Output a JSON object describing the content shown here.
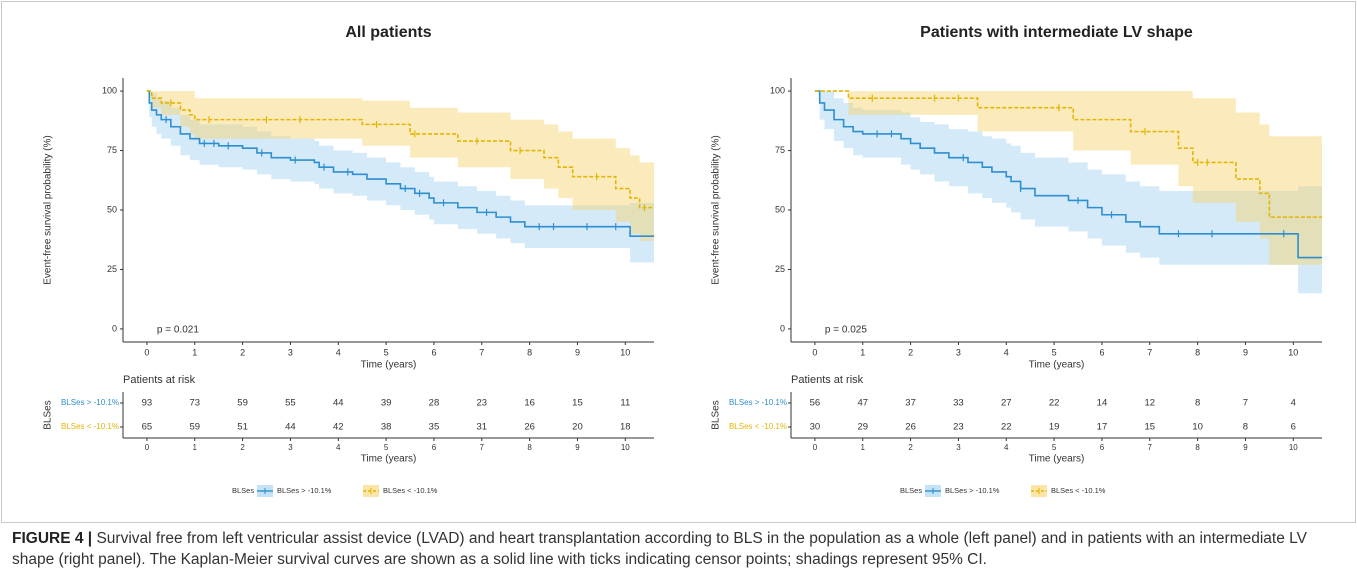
{
  "chart_data": [
    {
      "type": "step",
      "title": "All patients",
      "xlabel": "Time (years)",
      "ylabel": "Event-free survival probability (%)",
      "xlim": [
        -0.5,
        10.6
      ],
      "xticks": [
        0,
        1,
        2,
        3,
        4,
        5,
        6,
        7,
        8,
        9,
        10
      ],
      "ylim": [
        -5.5,
        105.5
      ],
      "yticks": [
        0,
        25,
        50,
        75,
        100
      ],
      "annotation": "p = 0.021",
      "risk_table_title": "Patients at risk",
      "legend_title": "BLSes",
      "series": [
        {
          "name": "BLSes > -10.1%",
          "color": "#2e8fd0",
          "band_color": "#9fd0f0",
          "dash": false,
          "x": [
            0,
            0.05,
            0.1,
            0.2,
            0.3,
            0.5,
            0.7,
            0.9,
            1.1,
            1.5,
            2,
            2.3,
            2.6,
            3,
            3.5,
            3.6,
            3.9,
            4.3,
            4.6,
            5,
            5.3,
            5.6,
            5.9,
            6,
            6.5,
            6.9,
            7.3,
            7.6,
            7.9,
            10.1
          ],
          "values": [
            100,
            95,
            92,
            90,
            88,
            85,
            82,
            80,
            78,
            77,
            76,
            74,
            72,
            71,
            70,
            68,
            66,
            65,
            63,
            61,
            59,
            57,
            55,
            53,
            51,
            49,
            47,
            45,
            43,
            39
          ],
          "lower": [
            100,
            89,
            85,
            82,
            80,
            77,
            73,
            71,
            69,
            68,
            67,
            65,
            63,
            62,
            61,
            59,
            57,
            56,
            54,
            52,
            50,
            48,
            46,
            44,
            42,
            40,
            38,
            36,
            34,
            28
          ],
          "upper": [
            100,
            100,
            99,
            97,
            96,
            93,
            90,
            88,
            86,
            86,
            85,
            83,
            81,
            80,
            79,
            77,
            75,
            74,
            72,
            70,
            68,
            66,
            64,
            62,
            60,
            58,
            56,
            54,
            52,
            53
          ],
          "censor": [
            0.4,
            1.2,
            1.4,
            1.7,
            2.4,
            3.1,
            3.7,
            4.2,
            5.4,
            5.7,
            6.2,
            7.1,
            8.2,
            8.5,
            9.2,
            9.8
          ],
          "at_risk": [
            93,
            73,
            59,
            55,
            44,
            39,
            28,
            23,
            16,
            15,
            11
          ]
        },
        {
          "name": "BLSes < -10.1%",
          "color": "#e3b505",
          "band_color": "#f6d36a",
          "dash": true,
          "x": [
            0,
            0.1,
            0.3,
            0.7,
            0.9,
            1,
            4.5,
            5.5,
            6.5,
            7.6,
            8.3,
            8.6,
            8.9,
            9.8,
            10.1,
            10.3
          ],
          "values": [
            100,
            97,
            95,
            92,
            90,
            88,
            86,
            82,
            79,
            75,
            72,
            68,
            64,
            59,
            55,
            51
          ],
          "lower": [
            100,
            93,
            90,
            85,
            82,
            80,
            77,
            72,
            68,
            63,
            59,
            55,
            50,
            45,
            40,
            37
          ],
          "upper": [
            100,
            100,
            100,
            100,
            100,
            97,
            96,
            93,
            91,
            88,
            86,
            83,
            80,
            76,
            73,
            70
          ],
          "censor": [
            0.5,
            1.3,
            2.5,
            3.2,
            4.8,
            5.6,
            6.9,
            7.8,
            9.4,
            10.4
          ],
          "at_risk": [
            65,
            59,
            51,
            44,
            42,
            38,
            35,
            31,
            26,
            20,
            18
          ]
        }
      ]
    },
    {
      "type": "step",
      "title": "Patients with intermediate LV shape",
      "xlabel": "Time (years)",
      "ylabel": "Event-free survival probability (%)",
      "xlim": [
        -0.5,
        10.6
      ],
      "xticks": [
        0,
        1,
        2,
        3,
        4,
        5,
        6,
        7,
        8,
        9,
        10
      ],
      "ylim": [
        -5.5,
        105.5
      ],
      "yticks": [
        0,
        25,
        50,
        75,
        100
      ],
      "annotation": "p = 0.025",
      "risk_table_title": "Patients at risk",
      "legend_title": "BLSes",
      "series": [
        {
          "name": "BLSes > -10.1%",
          "color": "#2e8fd0",
          "band_color": "#9fd0f0",
          "dash": false,
          "x": [
            0,
            0.1,
            0.2,
            0.4,
            0.6,
            0.8,
            1,
            1.8,
            2,
            2.2,
            2.5,
            2.8,
            3.2,
            3.5,
            3.7,
            4,
            4.1,
            4.3,
            4.6,
            5.3,
            5.7,
            6,
            6.5,
            6.8,
            7.2,
            10.1
          ],
          "values": [
            100,
            95,
            92,
            88,
            85,
            83,
            82,
            80,
            78,
            76,
            74,
            72,
            70,
            68,
            66,
            64,
            62,
            59,
            56,
            54,
            51,
            48,
            45,
            43,
            40,
            30
          ],
          "lower": [
            100,
            88,
            84,
            79,
            76,
            73,
            72,
            69,
            67,
            65,
            62,
            60,
            57,
            55,
            53,
            51,
            49,
            46,
            43,
            41,
            38,
            35,
            32,
            30,
            27,
            15
          ],
          "upper": [
            100,
            100,
            100,
            97,
            95,
            93,
            92,
            91,
            89,
            87,
            86,
            84,
            83,
            81,
            80,
            78,
            77,
            74,
            72,
            70,
            67,
            65,
            62,
            60,
            58,
            60
          ],
          "censor": [
            1.3,
            1.6,
            3.1,
            4.3,
            5.5,
            6.2,
            7.6,
            8.3,
            9.8
          ],
          "at_risk": [
            56,
            47,
            37,
            33,
            27,
            22,
            14,
            12,
            8,
            7,
            4
          ]
        },
        {
          "name": "BLSes < -10.1%",
          "color": "#e3b505",
          "band_color": "#f6d36a",
          "dash": true,
          "x": [
            0,
            0.7,
            3.4,
            5.4,
            6.6,
            7.6,
            7.9,
            8.8,
            9.3,
            9.5
          ],
          "values": [
            100,
            97,
            93,
            88,
            83,
            76,
            70,
            63,
            57,
            47
          ],
          "lower": [
            100,
            90,
            83,
            75,
            69,
            60,
            53,
            45,
            38,
            27
          ],
          "upper": [
            100,
            100,
            100,
            100,
            100,
            100,
            97,
            91,
            86,
            81
          ],
          "censor": [
            1.2,
            2.5,
            3.0,
            5.1,
            6.9,
            8.0,
            8.2
          ],
          "at_risk": [
            30,
            29,
            26,
            23,
            22,
            19,
            17,
            15,
            10,
            8,
            6
          ]
        }
      ]
    }
  ],
  "caption": {
    "label": "FIGURE 4 |",
    "text": "Survival free from left ventricular assist device (LVAD) and heart transplantation according to BLS in the population as a whole (left panel) and in patients with an intermediate LV shape (right panel). The Kaplan-Meier survival curves are shown as a solid line with ticks indicating censor points; shadings represent 95% CI."
  }
}
